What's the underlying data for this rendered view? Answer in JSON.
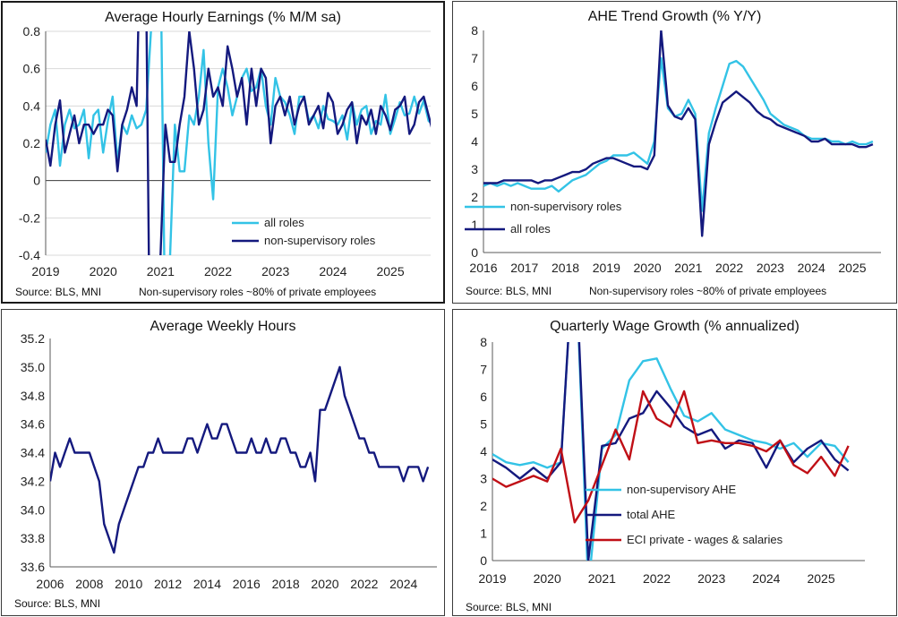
{
  "colors": {
    "light": "#33c3e6",
    "dark": "#14197e",
    "red": "#c00f16",
    "grid": "#d9d9d9",
    "axis": "#7f7f7f"
  },
  "panels": [
    {
      "title": "Average Hourly Earnings (% M/M sa)",
      "source": "Source: BLS, MNI",
      "note": "Non-supervisory roles ~80% of private employees"
    },
    {
      "title": "AHE Trend Growth (% Y/Y)",
      "source": "Source: BLS, MNI",
      "note": "Non-supervisory roles ~80% of private employees"
    },
    {
      "title": "Average Weekly Hours",
      "source": "Source: BLS, MNI",
      "note": ""
    },
    {
      "title": "Quarterly Wage Growth (% annualized)",
      "source": "Source: BLS, MNI",
      "note": ""
    }
  ],
  "chart_data": [
    {
      "type": "line",
      "title": "Average Hourly Earnings (% M/M sa)",
      "xlim": [
        2019,
        2025.7
      ],
      "ylim": [
        -0.4,
        0.8
      ],
      "yticks": [
        "0.8",
        "0.6",
        "0.4",
        "0.2",
        "0",
        "-0.2",
        "-0.4"
      ],
      "ytick_values": [
        0.8,
        0.6,
        0.4,
        0.2,
        0,
        -0.2,
        -0.4
      ],
      "xticks": [
        "2019",
        "2020",
        "2021",
        "2022",
        "2023",
        "2024",
        "2025"
      ],
      "xtick_values": [
        2019,
        2020,
        2021,
        2022,
        2023,
        2024,
        2025
      ],
      "grid": "horizontal",
      "legend_position": "bottom-right",
      "series": [
        {
          "name": "all roles",
          "color": "#33c3e6",
          "x_start": 2019.0,
          "x_step": 0.0833,
          "values": [
            0.15,
            0.3,
            0.38,
            0.08,
            0.3,
            0.38,
            0.28,
            0.3,
            0.38,
            0.12,
            0.35,
            0.38,
            0.15,
            0.32,
            0.45,
            0.1,
            0.3,
            0.25,
            0.35,
            0.28,
            0.3,
            0.38,
            0.8,
            1.5,
            1.2,
            -0.9,
            -0.4,
            0.3,
            0.05,
            0.05,
            0.35,
            0.3,
            0.45,
            0.7,
            0.2,
            -0.1,
            0.5,
            0.6,
            0.5,
            0.35,
            0.45,
            0.55,
            0.6,
            0.48,
            0.5,
            0.6,
            0.4,
            0.3,
            0.55,
            0.45,
            0.42,
            0.35,
            0.25,
            0.45,
            0.45,
            0.32,
            0.35,
            0.28,
            0.4,
            0.33,
            0.32,
            0.3,
            0.35,
            0.22,
            0.42,
            0.3,
            0.38,
            0.4,
            0.25,
            0.32,
            0.3,
            0.46,
            0.25,
            0.33,
            0.42,
            0.35,
            0.36,
            0.45,
            0.36,
            0.43,
            0.32,
            0.3,
            0.36,
            0.2,
            0.22,
            0.41,
            0.33,
            0.32
          ]
        },
        {
          "name": "non-supervisory roles",
          "color": "#14197e",
          "x_start": 2019.0,
          "x_step": 0.0833,
          "values": [
            0.22,
            0.08,
            0.3,
            0.43,
            0.15,
            0.25,
            0.35,
            0.2,
            0.3,
            0.3,
            0.25,
            0.3,
            0.3,
            0.38,
            0.35,
            0.05,
            0.3,
            0.38,
            0.5,
            0.4,
            1.6,
            1.0,
            -1.5,
            -0.8,
            -0.4,
            0.3,
            0.1,
            0.1,
            0.3,
            0.45,
            0.8,
            0.6,
            0.3,
            0.38,
            0.6,
            0.45,
            0.5,
            0.4,
            0.72,
            0.6,
            0.45,
            0.55,
            0.3,
            0.6,
            0.4,
            0.6,
            0.55,
            0.2,
            0.4,
            0.45,
            0.35,
            0.45,
            0.3,
            0.4,
            0.45,
            0.3,
            0.35,
            0.4,
            0.28,
            0.47,
            0.42,
            0.25,
            0.3,
            0.38,
            0.42,
            0.2,
            0.35,
            0.3,
            0.38,
            0.25,
            0.4,
            0.35,
            0.27,
            0.38,
            0.4,
            0.45,
            0.25,
            0.3,
            0.42,
            0.45,
            0.35,
            0.25,
            0.35,
            0.4,
            0.3,
            0.2,
            0.4,
            0.25
          ]
        }
      ]
    },
    {
      "type": "line",
      "title": "AHE Trend Growth (% Y/Y)",
      "xlim": [
        2016,
        2025.7
      ],
      "ylim": [
        0,
        8
      ],
      "yticks": [
        "8",
        "7",
        "6",
        "5",
        "4",
        "3",
        "2",
        "1",
        "0"
      ],
      "ytick_values": [
        8,
        7,
        6,
        5,
        4,
        3,
        2,
        1,
        0
      ],
      "xticks": [
        "2016",
        "2017",
        "2018",
        "2019",
        "2020",
        "2021",
        "2022",
        "2023",
        "2024",
        "2025"
      ],
      "xtick_values": [
        2016,
        2017,
        2018,
        2019,
        2020,
        2021,
        2022,
        2023,
        2024,
        2025
      ],
      "grid": "none",
      "legend_position": "left",
      "series": [
        {
          "name": "non-supervisory roles",
          "color": "#33c3e6",
          "x_start": 2016.0,
          "x_step": 0.1667,
          "values": [
            2.4,
            2.5,
            2.4,
            2.5,
            2.4,
            2.5,
            2.4,
            2.3,
            2.3,
            2.3,
            2.4,
            2.2,
            2.4,
            2.6,
            2.7,
            2.8,
            3.0,
            3.2,
            3.3,
            3.5,
            3.5,
            3.5,
            3.6,
            3.4,
            3.2,
            4.0,
            7.0,
            5.2,
            4.9,
            5.0,
            5.5,
            5.0,
            1.5,
            4.3,
            5.2,
            6.0,
            6.8,
            6.9,
            6.7,
            6.3,
            5.9,
            5.5,
            5.0,
            4.8,
            4.6,
            4.5,
            4.4,
            4.2,
            4.1,
            4.1,
            4.1,
            4.0,
            4.0,
            3.9,
            4.0,
            3.9,
            3.9,
            4.0
          ]
        },
        {
          "name": "all roles",
          "color": "#14197e",
          "x_start": 2016.0,
          "x_step": 0.1667,
          "values": [
            2.5,
            2.5,
            2.5,
            2.6,
            2.6,
            2.6,
            2.6,
            2.6,
            2.5,
            2.6,
            2.6,
            2.7,
            2.8,
            2.9,
            2.9,
            3.0,
            3.2,
            3.3,
            3.4,
            3.4,
            3.3,
            3.2,
            3.1,
            3.1,
            3.0,
            3.5,
            8.0,
            5.3,
            4.9,
            4.8,
            5.2,
            4.8,
            0.6,
            3.9,
            4.7,
            5.4,
            5.6,
            5.8,
            5.6,
            5.4,
            5.1,
            4.9,
            4.8,
            4.6,
            4.5,
            4.4,
            4.3,
            4.2,
            4.0,
            4.0,
            4.1,
            3.9,
            3.9,
            3.9,
            3.9,
            3.8,
            3.8,
            3.9
          ]
        }
      ]
    },
    {
      "type": "line",
      "title": "Average Weekly Hours",
      "xlim": [
        2006,
        2025.7
      ],
      "ylim": [
        33.6,
        35.2
      ],
      "yticks": [
        "35.2",
        "35.0",
        "34.8",
        "34.6",
        "34.4",
        "34.2",
        "34.0",
        "33.8",
        "33.6"
      ],
      "ytick_values": [
        35.2,
        35.0,
        34.8,
        34.6,
        34.4,
        34.2,
        34.0,
        33.8,
        33.6
      ],
      "xticks": [
        "2006",
        "2008",
        "2010",
        "2012",
        "2014",
        "2016",
        "2018",
        "2020",
        "2022",
        "2024"
      ],
      "xtick_values": [
        2006,
        2008,
        2010,
        2012,
        2014,
        2016,
        2018,
        2020,
        2022,
        2024
      ],
      "grid": "none",
      "series": [
        {
          "name": "",
          "color": "#14197e",
          "x_start": 2006.0,
          "x_step": 0.25,
          "values": [
            34.2,
            34.4,
            34.3,
            34.4,
            34.5,
            34.4,
            34.4,
            34.4,
            34.4,
            34.3,
            34.2,
            33.9,
            33.8,
            33.7,
            33.9,
            34.0,
            34.1,
            34.2,
            34.3,
            34.3,
            34.4,
            34.4,
            34.5,
            34.4,
            34.4,
            34.4,
            34.4,
            34.4,
            34.5,
            34.5,
            34.4,
            34.5,
            34.6,
            34.5,
            34.5,
            34.6,
            34.6,
            34.5,
            34.4,
            34.4,
            34.4,
            34.5,
            34.4,
            34.4,
            34.5,
            34.4,
            34.4,
            34.5,
            34.5,
            34.4,
            34.4,
            34.3,
            34.3,
            34.4,
            34.2,
            34.7,
            34.7,
            34.8,
            34.9,
            35.0,
            34.8,
            34.7,
            34.6,
            34.5,
            34.5,
            34.4,
            34.4,
            34.3,
            34.3,
            34.3,
            34.3,
            34.3,
            34.2,
            34.3,
            34.3,
            34.3,
            34.2,
            34.3
          ]
        }
      ]
    },
    {
      "type": "line",
      "title": "Quarterly Wage Growth (% annualized)",
      "xlim": [
        2019,
        2025.8
      ],
      "ylim": [
        0,
        8
      ],
      "yticks": [
        "8",
        "7",
        "6",
        "5",
        "4",
        "3",
        "2",
        "1",
        "0"
      ],
      "ytick_values": [
        8,
        7,
        6,
        5,
        4,
        3,
        2,
        1,
        0
      ],
      "xticks": [
        "2019",
        "2020",
        "2021",
        "2022",
        "2023",
        "2024",
        "2025"
      ],
      "xtick_values": [
        2019,
        2020,
        2021,
        2022,
        2023,
        2024,
        2025
      ],
      "grid": "none",
      "legend_position": "bottom",
      "series": [
        {
          "name": "non-supervisory AHE",
          "color": "#33c3e6",
          "x_start": 2019.0,
          "x_step": 0.25,
          "values": [
            3.9,
            3.6,
            3.5,
            3.6,
            3.4,
            3.6,
            12,
            -1,
            4.1,
            4.6,
            6.6,
            7.3,
            7.4,
            6.3,
            5.3,
            5.1,
            5.4,
            4.8,
            4.6,
            4.4,
            4.3,
            4.1,
            4.3,
            3.8,
            4.3,
            4.2,
            3.6
          ]
        },
        {
          "name": "total AHE",
          "color": "#14197e",
          "x_start": 2019.0,
          "x_step": 0.25,
          "values": [
            3.7,
            3.4,
            3.0,
            3.4,
            3.0,
            3.6,
            12,
            0,
            4.2,
            4.3,
            5.2,
            5.4,
            6.2,
            5.6,
            4.9,
            4.6,
            4.8,
            4.1,
            4.4,
            4.3,
            3.4,
            4.4,
            3.6,
            4.1,
            4.4,
            3.7,
            3.3
          ]
        },
        {
          "name": "ECI private - wages & salaries",
          "color": "#c00f16",
          "x_start": 2019.0,
          "x_step": 0.25,
          "values": [
            3.0,
            2.7,
            2.9,
            3.1,
            2.9,
            4.1,
            1.4,
            2.2,
            3.5,
            4.8,
            3.7,
            6.2,
            5.2,
            4.9,
            6.2,
            4.3,
            4.4,
            4.3,
            4.3,
            4.2,
            4.0,
            4.4,
            3.5,
            3.2,
            3.8,
            3.1,
            4.2
          ]
        }
      ]
    }
  ]
}
